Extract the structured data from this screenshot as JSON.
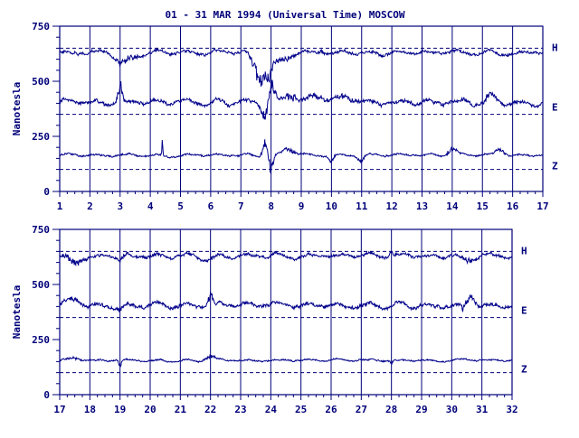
{
  "chart_data": {
    "title": "01 - 31 MAR 1994 (Universal Time) MOSCOW",
    "type": "line",
    "colors": {
      "line": "#00008b",
      "axis": "#00007a",
      "baseline": "#00007a"
    },
    "panels": [
      {
        "xlim": [
          1,
          17
        ],
        "ylim": [
          0,
          750
        ],
        "ylabel": "Nanotesla",
        "x_ticks": [
          "1",
          "2",
          "3",
          "4",
          "5",
          "6",
          "7",
          "8",
          "9",
          "10",
          "11",
          "12",
          "13",
          "14",
          "15",
          "16",
          "17"
        ],
        "y_ticks": [
          "0",
          "250",
          "500",
          "750"
        ],
        "series": [
          {
            "name": "H",
            "baseline": 650,
            "mean": 630,
            "amplitude": 10,
            "events": [
              [
                3.0,
                -30,
                0.25
              ],
              [
                3.3,
                -25,
                0.4
              ],
              [
                7.6,
                -90,
                0.25
              ],
              [
                7.9,
                -70,
                0.2
              ],
              [
                8.3,
                -35,
                0.4
              ],
              [
                9.7,
                20,
                0.1
              ]
            ]
          },
          {
            "name": "E",
            "baseline": 350,
            "mean": 405,
            "amplitude": 12,
            "events": [
              [
                3.0,
                70,
                0.1
              ],
              [
                7.8,
                -60,
                0.15
              ],
              [
                8.0,
                80,
                0.15
              ],
              [
                8.7,
                35,
                0.3
              ],
              [
                9.5,
                30,
                0.3
              ],
              [
                10.5,
                25,
                0.4
              ],
              [
                15.3,
                30,
                0.2
              ]
            ]
          },
          {
            "name": "Z",
            "baseline": 100,
            "mean": 165,
            "amplitude": 6,
            "events": [
              [
                4.4,
                60,
                0.02
              ],
              [
                7.8,
                70,
                0.1
              ],
              [
                8.0,
                -60,
                0.1
              ],
              [
                8.6,
                25,
                0.3
              ],
              [
                10.0,
                -30,
                0.1
              ],
              [
                11.0,
                -25,
                0.15
              ],
              [
                14.0,
                25,
                0.2
              ],
              [
                15.6,
                25,
                0.2
              ]
            ]
          }
        ]
      },
      {
        "xlim": [
          17,
          32
        ],
        "ylim": [
          0,
          750
        ],
        "ylabel": "Nanotesla",
        "x_ticks": [
          "17",
          "18",
          "19",
          "20",
          "21",
          "22",
          "23",
          "24",
          "25",
          "26",
          "27",
          "28",
          "29",
          "30",
          "31",
          "32"
        ],
        "y_ticks": [
          "0",
          "250",
          "500",
          "750"
        ],
        "series": [
          {
            "name": "H",
            "baseline": 650,
            "mean": 630,
            "amplitude": 10,
            "events": [
              [
                17.5,
                -30,
                0.3
              ],
              [
                19.0,
                -20,
                0.2
              ],
              [
                22.0,
                -15,
                0.3
              ],
              [
                28.0,
                20,
                0.05
              ],
              [
                30.5,
                -25,
                0.2
              ]
            ]
          },
          {
            "name": "E",
            "baseline": 350,
            "mean": 405,
            "amplitude": 12,
            "events": [
              [
                17.5,
                25,
                0.3
              ],
              [
                19.0,
                -25,
                0.1
              ],
              [
                22.0,
                40,
                0.1
              ],
              [
                30.6,
                40,
                0.2
              ],
              [
                30.4,
                -30,
                0.1
              ]
            ]
          },
          {
            "name": "Z",
            "baseline": 100,
            "mean": 155,
            "amplitude": 5,
            "events": [
              [
                17.5,
                15,
                0.3
              ],
              [
                19.0,
                -25,
                0.05
              ],
              [
                22.0,
                20,
                0.2
              ],
              [
                28.0,
                -15,
                0.05
              ]
            ]
          }
        ]
      }
    ]
  }
}
